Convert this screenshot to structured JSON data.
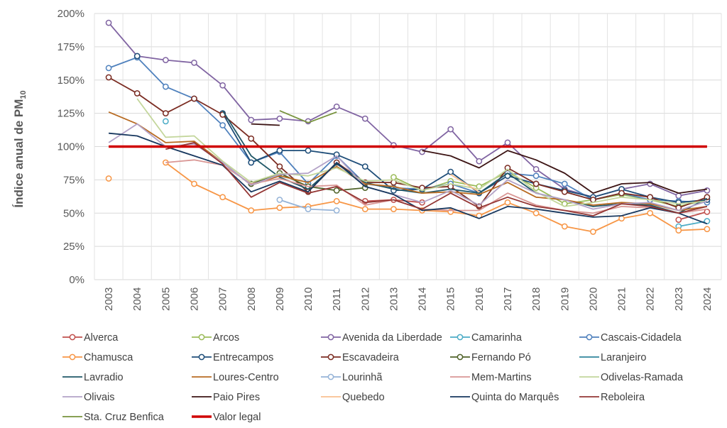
{
  "chart_data": {
    "type": "line",
    "title": "",
    "ylabel": "Índice anual de PM",
    "ylabel_sub": "10",
    "xlabel": "",
    "ylim": [
      0,
      200
    ],
    "yticks": [
      0,
      25,
      50,
      75,
      100,
      125,
      150,
      175,
      200
    ],
    "ytick_labels": [
      "0%",
      "25%",
      "50%",
      "75%",
      "100%",
      "125%",
      "150%",
      "175%",
      "200%"
    ],
    "categories": [
      "2003",
      "2004",
      "2005",
      "2006",
      "2007",
      "2008",
      "2009",
      "2010",
      "2011",
      "2012",
      "2013",
      "2014",
      "2015",
      "2016",
      "2017",
      "2018",
      "2019",
      "2020",
      "2021",
      "2022",
      "2023",
      "2024"
    ],
    "grid": true,
    "legend_position": "bottom",
    "series": [
      {
        "name": "Alverca",
        "color": "#c0504d",
        "marker": true,
        "values": [
          null,
          null,
          null,
          null,
          null,
          null,
          null,
          null,
          null,
          59,
          60,
          58,
          null,
          null,
          null,
          null,
          null,
          null,
          null,
          null,
          45,
          51
        ]
      },
      {
        "name": "Arcos",
        "color": "#9bbb59",
        "marker": true,
        "values": [
          null,
          null,
          null,
          null,
          null,
          null,
          null,
          null,
          null,
          null,
          77,
          67,
          74,
          70,
          81,
          69,
          57,
          60,
          64,
          60,
          55,
          60
        ]
      },
      {
        "name": "Avenida da Liberdade",
        "color": "#8064a2",
        "marker": true,
        "values": [
          193,
          168,
          165,
          163,
          146,
          120,
          121,
          119,
          130,
          121,
          101,
          96,
          113,
          89,
          103,
          83,
          68,
          62,
          68,
          72,
          63,
          67
        ]
      },
      {
        "name": "Camarinha",
        "color": "#4bacc6",
        "marker": true,
        "values": [
          null,
          null,
          119,
          null,
          null,
          null,
          null,
          null,
          null,
          null,
          null,
          null,
          null,
          null,
          null,
          null,
          null,
          null,
          null,
          null,
          40,
          44
        ]
      },
      {
        "name": "Cascais-Cidadela",
        "color": "#4f81bd",
        "marker": true,
        "values": [
          159,
          167,
          145,
          136,
          116,
          88,
          96,
          72,
          93,
          72,
          69,
          68,
          72,
          65,
          80,
          78,
          72,
          60,
          65,
          60,
          59,
          58
        ]
      },
      {
        "name": "Chamusca",
        "color": "#f79646",
        "marker": true,
        "values": [
          76,
          null,
          88,
          72,
          62,
          52,
          54,
          55,
          59,
          53,
          53,
          52,
          51,
          48,
          58,
          50,
          40,
          36,
          46,
          50,
          37,
          38
        ]
      },
      {
        "name": "Entrecampos",
        "color": "#1f4e79",
        "marker": true,
        "values": [
          null,
          168,
          null,
          null,
          125,
          88,
          97,
          97,
          94,
          85,
          67,
          68,
          81,
          65,
          78,
          72,
          67,
          62,
          68,
          62,
          58,
          60
        ]
      },
      {
        "name": "Escavadeira",
        "color": "#7b2c22",
        "marker": true,
        "values": [
          152,
          140,
          125,
          136,
          124,
          106,
          85,
          66,
          88,
          73,
          73,
          69,
          70,
          55,
          84,
          72,
          66,
          60,
          65,
          62,
          54,
          62
        ]
      },
      {
        "name": "Fernando Pó",
        "color": "#4f6228",
        "marker": true,
        "values": [
          null,
          null,
          null,
          null,
          null,
          72,
          80,
          70,
          67,
          69,
          null,
          null,
          null,
          null,
          null,
          null,
          null,
          null,
          null,
          null,
          null,
          null
        ]
      },
      {
        "name": "Laranjeiro",
        "color": "#31859c",
        "marker": false,
        "values": [
          null,
          null,
          null,
          null,
          null,
          null,
          null,
          null,
          null,
          null,
          null,
          null,
          null,
          null,
          null,
          null,
          null,
          null,
          null,
          null,
          null,
          null
        ]
      },
      {
        "name": "Lavradio",
        "color": "#215868",
        "marker": false,
        "values": [
          null,
          null,
          null,
          null,
          127,
          93,
          77,
          68,
          87,
          73,
          68,
          65,
          68,
          65,
          80,
          65,
          60,
          55,
          57,
          56,
          50,
          61
        ]
      },
      {
        "name": "Loures-Centro",
        "color": "#b86b22",
        "marker": false,
        "values": [
          126,
          117,
          103,
          104,
          88,
          71,
          78,
          73,
          85,
          72,
          70,
          65,
          66,
          64,
          73,
          62,
          60,
          56,
          58,
          57,
          52,
          55
        ]
      },
      {
        "name": "Lourinhã",
        "color": "#95b3d7",
        "marker": true,
        "values": [
          null,
          null,
          null,
          null,
          null,
          null,
          60,
          53,
          52,
          null,
          null,
          null,
          null,
          null,
          null,
          null,
          null,
          null,
          null,
          null,
          null,
          null
        ]
      },
      {
        "name": "Mem-Martins",
        "color": "#d99694",
        "marker": false,
        "values": [
          null,
          null,
          88,
          90,
          86,
          72,
          76,
          70,
          71,
          56,
          60,
          53,
          52,
          52,
          65,
          56,
          52,
          50,
          55,
          54,
          50,
          53
        ]
      },
      {
        "name": "Odivelas-Ramada",
        "color": "#c3d69b",
        "marker": false,
        "values": [
          null,
          136,
          107,
          108,
          89,
          73,
          80,
          78,
          84,
          74,
          75,
          67,
          72,
          68,
          83,
          66,
          55,
          58,
          62,
          60,
          57,
          59
        ]
      },
      {
        "name": "Olivais",
        "color": "#b3a2c7",
        "marker": false,
        "values": [
          103,
          117,
          100,
          102,
          88,
          71,
          79,
          80,
          93,
          70,
          64,
          58,
          67,
          56,
          75,
          65,
          60,
          53,
          57,
          58,
          52,
          59
        ]
      },
      {
        "name": "Paio Pires",
        "color": "#3c1414",
        "marker": false,
        "values": [
          null,
          null,
          null,
          null,
          null,
          117,
          116,
          null,
          null,
          null,
          null,
          97,
          93,
          84,
          97,
          90,
          80,
          65,
          72,
          73,
          65,
          68
        ]
      },
      {
        "name": "Quebedo",
        "color": "#fac090",
        "marker": false,
        "values": [
          null,
          null,
          null,
          null,
          null,
          null,
          null,
          null,
          null,
          null,
          null,
          null,
          79,
          66,
          null,
          null,
          null,
          null,
          null,
          null,
          null,
          null
        ]
      },
      {
        "name": "Quinta do Marquês",
        "color": "#17375e",
        "marker": false,
        "values": [
          110,
          108,
          100,
          93,
          86,
          66,
          74,
          66,
          88,
          70,
          64,
          52,
          54,
          46,
          55,
          53,
          50,
          47,
          48,
          54,
          50,
          42
        ]
      },
      {
        "name": "Reboleira",
        "color": "#943634",
        "marker": false,
        "values": [
          null,
          null,
          98,
          103,
          87,
          62,
          73,
          65,
          70,
          58,
          60,
          53,
          65,
          54,
          62,
          55,
          52,
          48,
          57,
          55,
          50,
          55
        ]
      },
      {
        "name": "Sta. Cruz Benfica",
        "color": "#77933c",
        "marker": false,
        "values": [
          null,
          null,
          null,
          null,
          null,
          null,
          127,
          118,
          126,
          null,
          null,
          null,
          null,
          null,
          null,
          null,
          null,
          null,
          null,
          null,
          null,
          null
        ]
      },
      {
        "name": "Valor legal",
        "color": "#d00000",
        "marker": false,
        "thick": true,
        "values": [
          100,
          100,
          100,
          100,
          100,
          100,
          100,
          100,
          100,
          100,
          100,
          100,
          100,
          100,
          100,
          100,
          100,
          100,
          100,
          100,
          100,
          100
        ]
      }
    ]
  }
}
